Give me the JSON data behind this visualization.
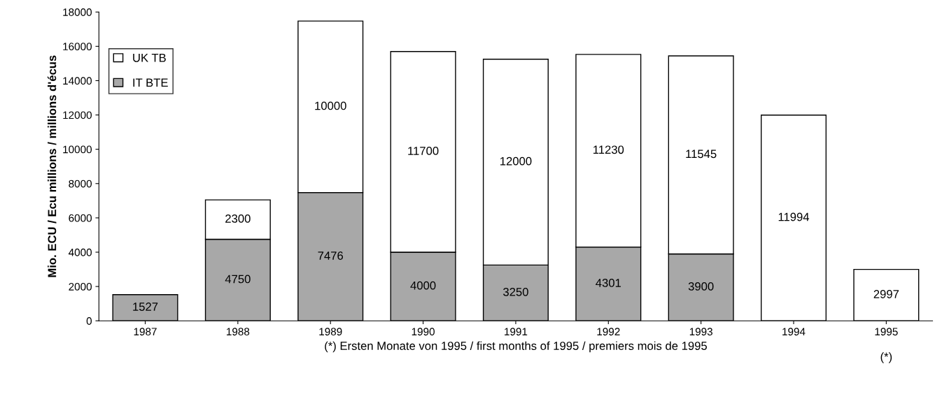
{
  "chart_data": {
    "type": "bar",
    "stacked": true,
    "categories": [
      "1987",
      "1988",
      "1989",
      "1990",
      "1991",
      "1992",
      "1993",
      "1994",
      "1995"
    ],
    "series": [
      {
        "name": "IT BTE",
        "color": "#a8a8a8",
        "values": [
          1527,
          4750,
          7476,
          4000,
          3250,
          4301,
          3900,
          null,
          null
        ]
      },
      {
        "name": "UK TB",
        "color": "#ffffff",
        "values": [
          null,
          2300,
          10000,
          11700,
          12000,
          11230,
          11545,
          11994,
          2997
        ]
      }
    ],
    "ylim": [
      0,
      18000
    ],
    "yticks": [
      0,
      2000,
      4000,
      6000,
      8000,
      10000,
      12000,
      14000,
      16000,
      18000
    ],
    "ylabel": "Mio. ECU / Ecu millions / millions d'écus",
    "xlabel": "(*) Ersten Monate von 1995 / first months of 1995 / premiers mois de 1995",
    "annotations": [
      "(*)"
    ],
    "data_labels": true,
    "legend": "top left",
    "grid": false
  }
}
